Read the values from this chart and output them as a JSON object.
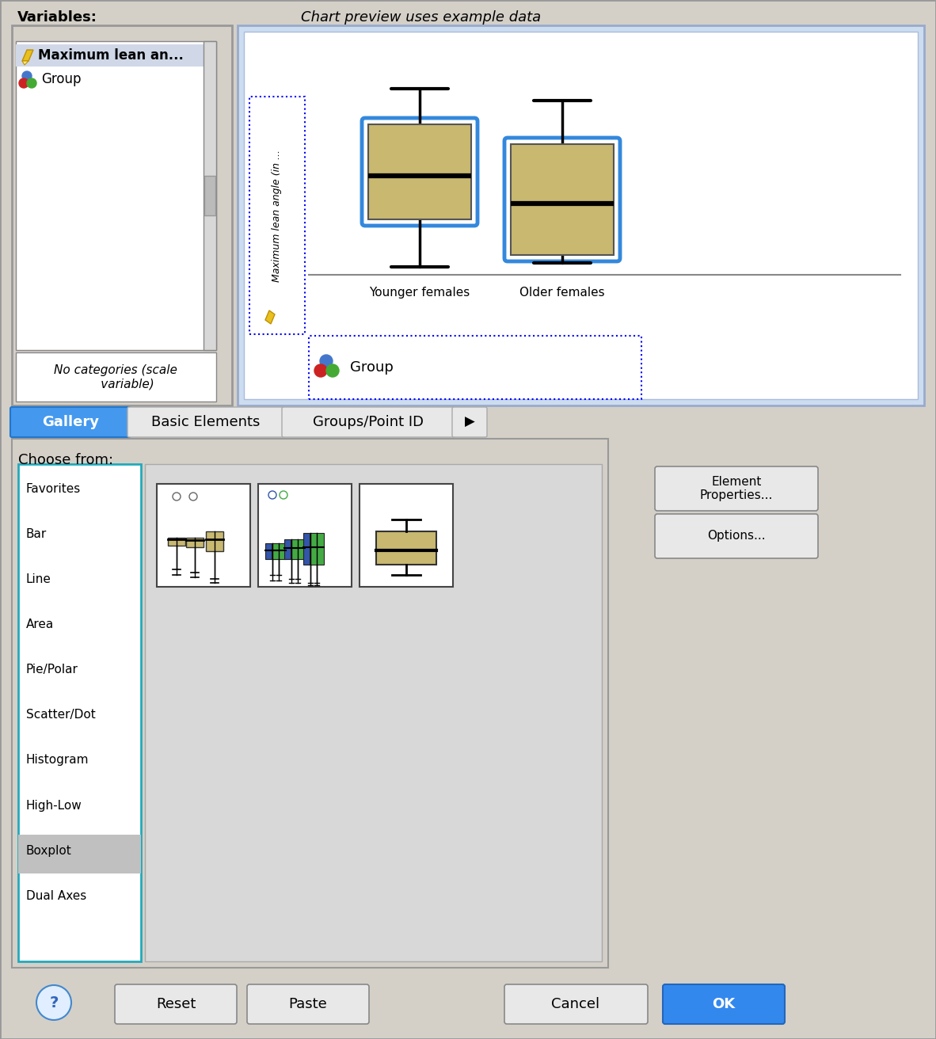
{
  "bg_color": "#d4d0c8",
  "white": "#ffffff",
  "title_text": "Chart preview uses example data",
  "variables_label": "Variables:",
  "var1_text": "Maximum lean an...",
  "var2_text": "Group",
  "tab_labels": [
    "Gallery",
    "Basic Elements",
    "Groups/Point ID"
  ],
  "choose_from_label": "Choose from:",
  "list_items": [
    "Favorites",
    "Bar",
    "Line",
    "Area",
    "Pie/Polar",
    "Scatter/Dot",
    "Histogram",
    "High-Low",
    "Boxplot",
    "Dual Axes"
  ],
  "selected_item": "Boxplot",
  "right_buttons": [
    "Element\nProperties...",
    "Options..."
  ],
  "preview_xlabel1": "Younger females",
  "preview_xlabel2": "Older females",
  "group_label": "Group",
  "box_color": "#c8b870",
  "box_border": "#3388dd",
  "list_teal": "#22aabb",
  "tab_blue": "#4499ee",
  "ok_blue": "#3388ee",
  "panel_gray": "#e8e8e8",
  "inner_gray": "#d8d8d8",
  "selected_gray": "#c0c0c0"
}
